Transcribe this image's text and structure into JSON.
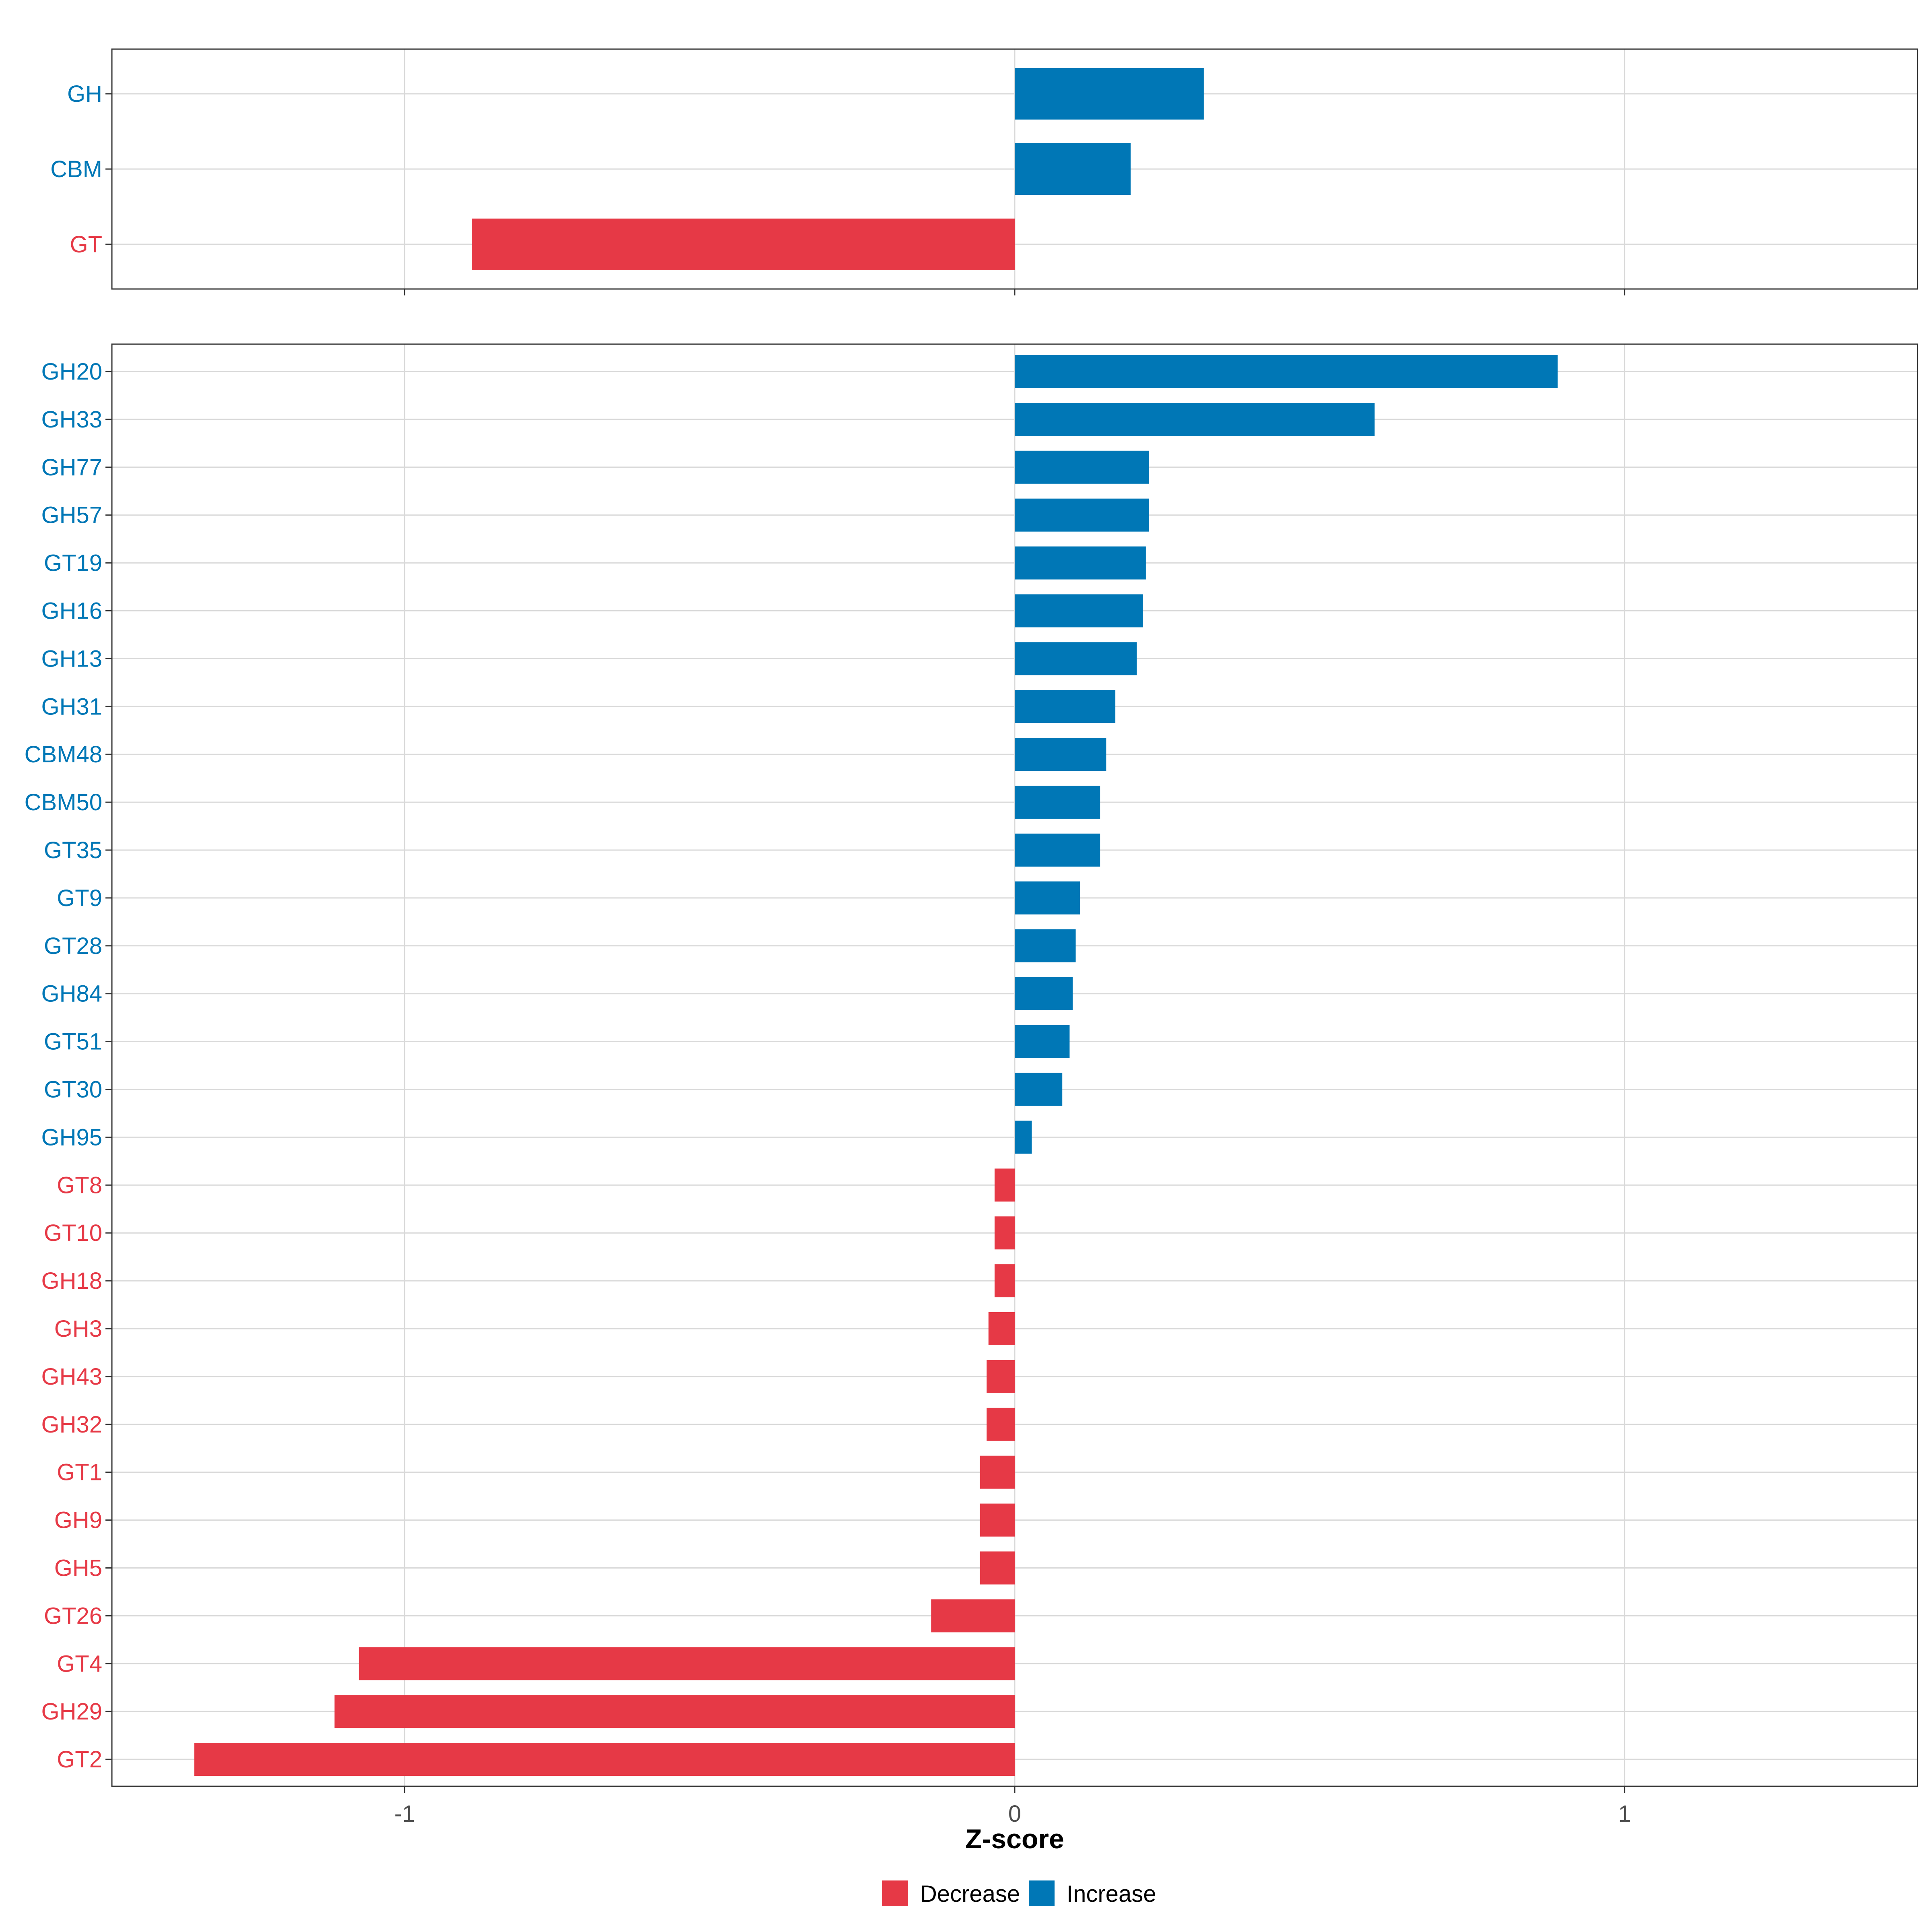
{
  "colors": {
    "increase": "#0077B6",
    "decrease": "#E63946",
    "grid": "#D9D9D9",
    "panel_border": "#333333",
    "tick_text": "#4D4D4D",
    "axis_title": "#000000"
  },
  "chart_data": [
    {
      "type": "bar",
      "orientation": "horizontal",
      "panel": "top",
      "categories": [
        "GH",
        "CBM",
        "GT"
      ],
      "values": [
        0.31,
        0.19,
        -0.89
      ],
      "directions": [
        "Increase",
        "Increase",
        "Decrease"
      ],
      "xlim": [
        -1.48,
        1.48
      ],
      "xticks": [
        -1,
        0,
        1
      ],
      "grid": true
    },
    {
      "type": "bar",
      "orientation": "horizontal",
      "panel": "bottom",
      "categories": [
        "GH20",
        "GH33",
        "GH77",
        "GH57",
        "GT19",
        "GH16",
        "GH13",
        "GH31",
        "CBM48",
        "CBM50",
        "GT35",
        "GT9",
        "GT28",
        "GH84",
        "GT51",
        "GT30",
        "GH95",
        "GT8",
        "GT10",
        "GH18",
        "GH3",
        "GH43",
        "GH32",
        "GT1",
        "GH9",
        "GH5",
        "GT26",
        "GT4",
        "GH29",
        "GT2"
      ],
      "values": [
        0.89,
        0.59,
        0.22,
        0.22,
        0.215,
        0.21,
        0.2,
        0.165,
        0.15,
        0.14,
        0.14,
        0.107,
        0.1,
        0.095,
        0.09,
        0.078,
        0.028,
        -0.033,
        -0.033,
        -0.033,
        -0.043,
        -0.046,
        -0.046,
        -0.057,
        -0.057,
        -0.057,
        -0.137,
        -1.075,
        -1.115,
        -1.345
      ],
      "directions": [
        "Increase",
        "Increase",
        "Increase",
        "Increase",
        "Increase",
        "Increase",
        "Increase",
        "Increase",
        "Increase",
        "Increase",
        "Increase",
        "Increase",
        "Increase",
        "Increase",
        "Increase",
        "Increase",
        "Increase",
        "Decrease",
        "Decrease",
        "Decrease",
        "Decrease",
        "Decrease",
        "Decrease",
        "Decrease",
        "Decrease",
        "Decrease",
        "Decrease",
        "Decrease",
        "Decrease",
        "Decrease"
      ],
      "xlim": [
        -1.48,
        1.48
      ],
      "xticks": [
        -1,
        0,
        1
      ],
      "xticklabels": [
        "-1",
        "0",
        "1"
      ],
      "xlabel": "Z-score",
      "grid": true
    }
  ],
  "legend": {
    "position": "bottom",
    "items": [
      {
        "label": "Decrease",
        "color": "#E63946"
      },
      {
        "label": "Increase",
        "color": "#0077B6"
      }
    ]
  }
}
